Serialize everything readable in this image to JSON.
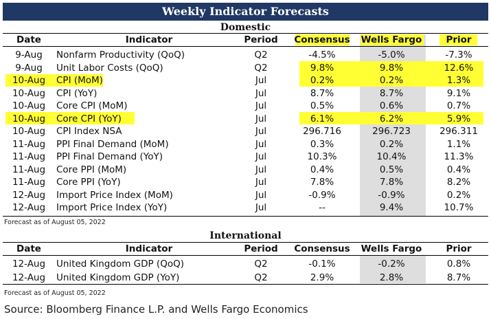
{
  "title": "Weekly Indicator Forecasts",
  "domestic": {
    "section": "Domestic",
    "headers": {
      "date": "Date",
      "indicator": "Indicator",
      "period": "Period",
      "consensus": "Consensus",
      "wells_fargo": "Wells Fargo",
      "prior": "Prior"
    },
    "rows": [
      {
        "date": "9-Aug",
        "indicator": "Nonfarm Productivity (QoQ)",
        "period": "Q2",
        "consensus": "-4.5%",
        "wells_fargo": "-5.0%",
        "prior": "-7.3%"
      },
      {
        "date": "9-Aug",
        "indicator": "Unit Labor Costs (QoQ)",
        "period": "Q2",
        "consensus": "9.8%",
        "wells_fargo": "9.8%",
        "prior": "12.6%"
      },
      {
        "date": "10-Aug",
        "indicator": "CPI (MoM)",
        "period": "Jul",
        "consensus": "0.2%",
        "wells_fargo": "0.2%",
        "prior": "1.3%"
      },
      {
        "date": "10-Aug",
        "indicator": "CPI (YoY)",
        "period": "Jul",
        "consensus": "8.7%",
        "wells_fargo": "8.7%",
        "prior": "9.1%"
      },
      {
        "date": "10-Aug",
        "indicator": "Core CPI (MoM)",
        "period": "Jul",
        "consensus": "0.5%",
        "wells_fargo": "0.6%",
        "prior": "0.7%"
      },
      {
        "date": "10-Aug",
        "indicator": "Core CPI (YoY)",
        "period": "Jul",
        "consensus": "6.1%",
        "wells_fargo": "6.2%",
        "prior": "5.9%"
      },
      {
        "date": "10-Aug",
        "indicator": "CPI Index NSA",
        "period": "Jul",
        "consensus": "296.716",
        "wells_fargo": "296.723",
        "prior": "296.311"
      },
      {
        "date": "11-Aug",
        "indicator": "PPI Final Demand (MoM)",
        "period": "Jul",
        "consensus": "0.3%",
        "wells_fargo": "0.2%",
        "prior": "1.1%"
      },
      {
        "date": "11-Aug",
        "indicator": "PPI Final Demand (YoY)",
        "period": "Jul",
        "consensus": "10.3%",
        "wells_fargo": "10.4%",
        "prior": "11.3%"
      },
      {
        "date": "11-Aug",
        "indicator": "Core PPI (MoM)",
        "period": "Jul",
        "consensus": "0.4%",
        "wells_fargo": "0.5%",
        "prior": "0.4%"
      },
      {
        "date": "11-Aug",
        "indicator": "Core PPI (YoY)",
        "period": "Jul",
        "consensus": "7.8%",
        "wells_fargo": "7.8%",
        "prior": "8.2%"
      },
      {
        "date": "12-Aug",
        "indicator": "Import Price Index (MoM)",
        "period": "Jul",
        "consensus": "-0.9%",
        "wells_fargo": "-0.9%",
        "prior": "0.2%"
      },
      {
        "date": "12-Aug",
        "indicator": "Import Price Index (YoY)",
        "period": "Jul",
        "consensus": "--",
        "wells_fargo": "9.4%",
        "prior": "10.7%"
      }
    ],
    "note": "Forecast as of August 05, 2022"
  },
  "international": {
    "section": "International",
    "headers": {
      "date": "Date",
      "indicator": "Indicator",
      "period": "Period",
      "consensus": "Consensus",
      "wells_fargo": "Wells Fargo",
      "prior": "Prior"
    },
    "rows": [
      {
        "date": "12-Aug",
        "indicator": "United Kingdom GDP (QoQ)",
        "period": "Q2",
        "consensus": "-0.1%",
        "wells_fargo": "-0.2%",
        "prior": "0.8%"
      },
      {
        "date": "12-Aug",
        "indicator": "United Kingdom GDP (YoY)",
        "period": "Q2",
        "consensus": "2.9%",
        "wells_fargo": "2.8%",
        "prior": "8.7%"
      }
    ],
    "note": "Forecast as of August 05, 2022"
  },
  "source": "Source: Bloomberg Finance L.P. and Wells Fargo Economics",
  "colors": {
    "title_bar": "#1f3864",
    "highlight": "#ffff33",
    "wells_fargo_shade": "#dedede"
  }
}
